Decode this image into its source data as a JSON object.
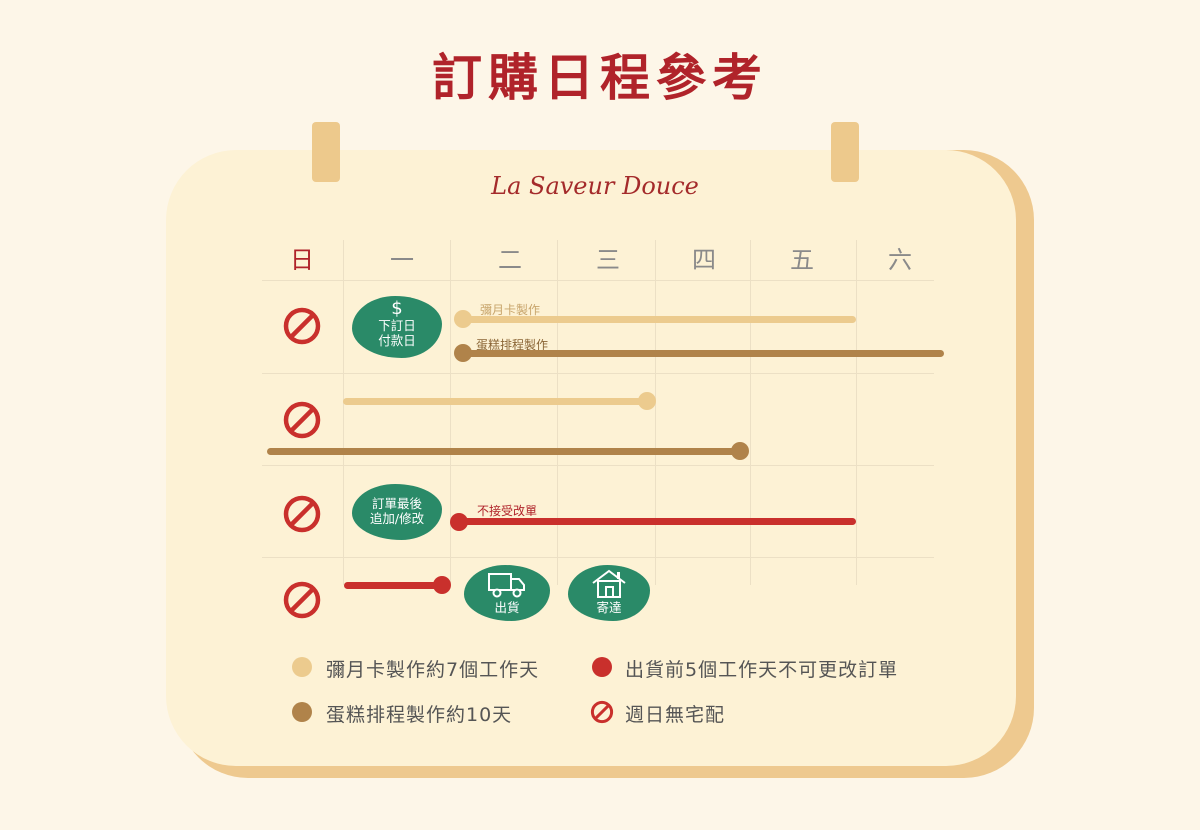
{
  "title": "訂購日程參考",
  "brand": "La Saveur Douce",
  "days": [
    "日",
    "一",
    "二",
    "三",
    "四",
    "五",
    "六"
  ],
  "colors": {
    "red": "#b0232a",
    "light": "#eccb8e",
    "brown": "#b0834a",
    "green": "#2a8a68",
    "bg": "#fdf6e8",
    "board": "#fdf2d5"
  },
  "calendar": {
    "order_day": {
      "icon": "dollar-icon",
      "symbol": "$",
      "line1": "下訂日",
      "line2": "付款日"
    },
    "mooncard_label": "彌月卡製作",
    "cake_label": "蛋糕排程製作",
    "last_edit": {
      "line1": "訂單最後",
      "line2": "追加/修改"
    },
    "no_change_label": "不接受改單",
    "ship": {
      "icon": "truck-icon",
      "label": "出貨"
    },
    "deliver": {
      "icon": "house-icon",
      "label": "寄達"
    }
  },
  "legend": {
    "mooncard": "彌月卡製作約7個工作天",
    "cake": "蛋糕排程製作約10天",
    "no_change": "出貨前5個工作天不可更改訂單",
    "no_sunday": "週日無宅配"
  }
}
